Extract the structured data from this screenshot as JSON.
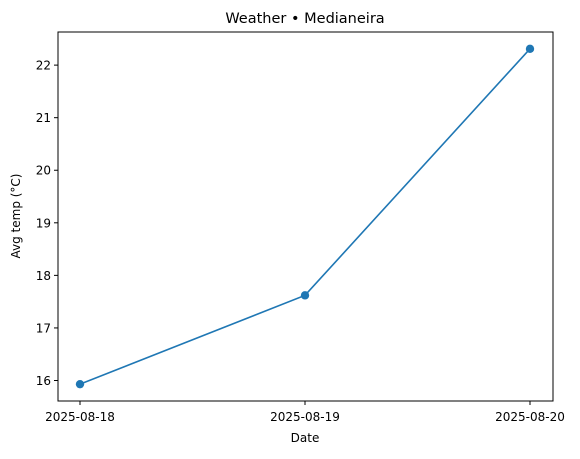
{
  "chart_data": {
    "type": "line",
    "title": "Weather • Medianeira",
    "xlabel": "Date",
    "ylabel": "Avg temp (°C)",
    "x": [
      "2025-08-18",
      "2025-08-19",
      "2025-08-20"
    ],
    "series": [
      {
        "values": [
          15.93,
          17.62,
          22.31
        ],
        "color": "#1f77b4",
        "marker": "circle"
      }
    ],
    "yticks": [
      16,
      17,
      18,
      19,
      20,
      21,
      22
    ],
    "ylim": [
      15.61,
      22.63
    ],
    "grid": false,
    "legend": "none"
  }
}
